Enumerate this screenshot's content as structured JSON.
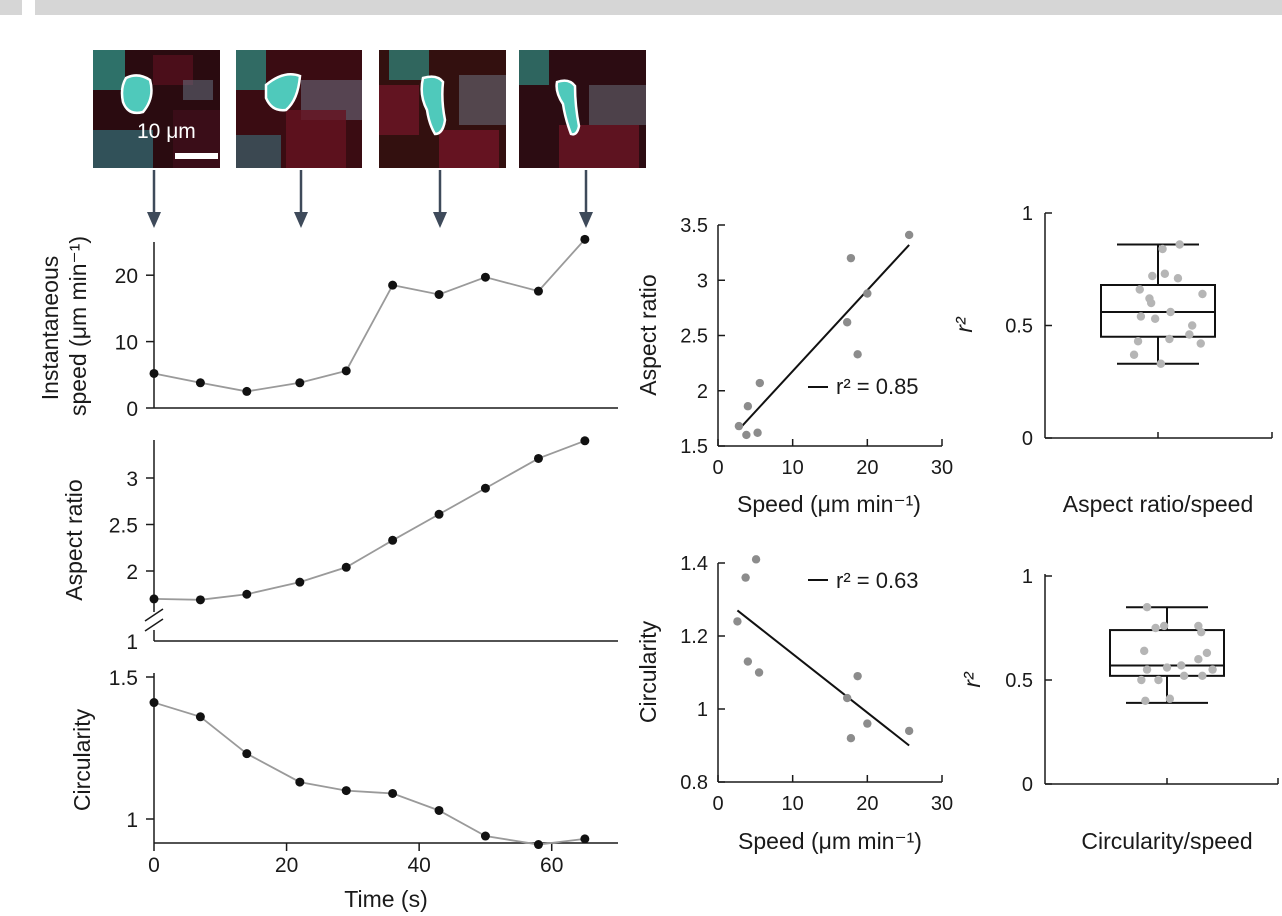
{
  "header_text": "",
  "scale_bar_label": "10 μm",
  "colors": {
    "background": "#ffffff",
    "header_band": "#d6d6d6",
    "line": "#9a9a9a",
    "marker": "#111111",
    "scatter_point": "#8c8c8c",
    "fit_line": "#111111",
    "box_point": "#b5b5b5",
    "arrow": "#3e4a5a",
    "cell_outline": "#ffffff",
    "cell_fill": "#4fc9bb",
    "thumb_background": "#2a0b10"
  },
  "chart_data": [
    {
      "id": "speed_time",
      "type": "line",
      "x": [
        0,
        7,
        14,
        22,
        29,
        36,
        43,
        50,
        58,
        65
      ],
      "y": [
        5.2,
        3.8,
        2.5,
        3.8,
        5.6,
        18.5,
        17.1,
        19.7,
        17.6,
        25.4
      ],
      "ylabel": "Instantaneous speed (μm min⁻¹)",
      "ylabel_lines": [
        "Instantaneous",
        "speed (μm min⁻¹)"
      ],
      "yticks": [
        0,
        10,
        20
      ],
      "ylim": [
        0,
        25
      ]
    },
    {
      "id": "aspect_time",
      "type": "line",
      "x": [
        0,
        7,
        14,
        22,
        29,
        36,
        43,
        50,
        58,
        65
      ],
      "y": [
        1.7,
        1.69,
        1.75,
        1.88,
        2.04,
        2.33,
        2.61,
        2.89,
        3.21,
        3.4
      ],
      "ylabel": "Aspect ratio",
      "yticks": [
        1,
        2,
        2.5,
        3
      ],
      "ytick_labels": [
        "1",
        "2",
        "2.5",
        "3"
      ],
      "axis_break": true,
      "ylim": [
        1.5,
        3.4
      ]
    },
    {
      "id": "circ_time",
      "type": "line",
      "x": [
        0,
        7,
        14,
        22,
        29,
        36,
        43,
        50,
        58,
        65
      ],
      "y": [
        1.41,
        1.36,
        1.23,
        1.13,
        1.1,
        1.09,
        1.03,
        0.94,
        0.91,
        0.93
      ],
      "ylabel": "Circularity",
      "xlabel": "Time (s)",
      "xticks": [
        0,
        20,
        40,
        60
      ],
      "yticks": [
        1,
        1.5
      ],
      "xlim": [
        0,
        70
      ],
      "ylim": [
        0.93,
        1.5
      ]
    },
    {
      "id": "aspect_speed",
      "type": "scatter",
      "x": [
        2.8,
        3.8,
        4.0,
        5.3,
        5.6,
        17.3,
        17.8,
        18.7,
        20.0,
        25.6
      ],
      "y": [
        1.68,
        1.6,
        1.86,
        1.62,
        2.07,
        2.62,
        3.2,
        2.33,
        2.88,
        3.41
      ],
      "fit": {
        "x": [
          2.8,
          25.6
        ],
        "y": [
          1.65,
          3.32
        ]
      },
      "annotation": "r² = 0.85",
      "xlabel": "Speed (μm min⁻¹)",
      "ylabel": "Aspect ratio",
      "xticks": [
        0,
        10,
        20,
        30
      ],
      "yticks": [
        1.5,
        2,
        2.5,
        3,
        3.5
      ],
      "xlim": [
        0,
        30
      ],
      "ylim": [
        1.5,
        3.5
      ]
    },
    {
      "id": "circ_speed",
      "type": "scatter",
      "x": [
        2.6,
        3.7,
        4.0,
        5.1,
        5.5,
        17.3,
        17.8,
        18.7,
        20.0,
        25.6
      ],
      "y": [
        1.24,
        1.36,
        1.13,
        1.41,
        1.1,
        1.03,
        0.92,
        1.09,
        0.96,
        0.94
      ],
      "fit": {
        "x": [
          2.6,
          25.6
        ],
        "y": [
          1.27,
          0.9
        ]
      },
      "annotation": "r² = 0.63",
      "xlabel": "Speed (μm min⁻¹)",
      "ylabel": "Circularity",
      "xticks": [
        0,
        10,
        20,
        30
      ],
      "yticks": [
        0.8,
        1,
        1.2,
        1.4
      ],
      "xlim": [
        0,
        30
      ],
      "ylim": [
        0.8,
        1.4
      ]
    },
    {
      "id": "box_aspect",
      "type": "box",
      "label": "Aspect ratio/speed",
      "ylabel": "r²",
      "yticks": [
        0,
        0.5,
        1
      ],
      "ylim": [
        0,
        1
      ],
      "stats": {
        "min": 0.33,
        "q1": 0.45,
        "median": 0.56,
        "q3": 0.68,
        "max": 0.86
      },
      "points": [
        {
          "x": 0.08,
          "y": 0.84
        },
        {
          "x": 0.38,
          "y": 0.86
        },
        {
          "x": -0.1,
          "y": 0.72
        },
        {
          "x": 0.12,
          "y": 0.73
        },
        {
          "x": 0.35,
          "y": 0.71
        },
        {
          "x": -0.15,
          "y": 0.62
        },
        {
          "x": -0.32,
          "y": 0.66
        },
        {
          "x": 0.78,
          "y": 0.64
        },
        {
          "x": -0.12,
          "y": 0.6
        },
        {
          "x": 0.22,
          "y": 0.56
        },
        {
          "x": -0.05,
          "y": 0.53
        },
        {
          "x": -0.3,
          "y": 0.54
        },
        {
          "x": 0.6,
          "y": 0.5
        },
        {
          "x": -0.35,
          "y": 0.43
        },
        {
          "x": 0.2,
          "y": 0.44
        },
        {
          "x": 0.55,
          "y": 0.46
        },
        {
          "x": -0.42,
          "y": 0.37
        },
        {
          "x": 0.75,
          "y": 0.42
        },
        {
          "x": 0.05,
          "y": 0.33
        }
      ]
    },
    {
      "id": "box_circ",
      "type": "box",
      "label": "Circularity/speed",
      "ylabel": "r²",
      "yticks": [
        0,
        0.5,
        1
      ],
      "ylim": [
        0,
        1
      ],
      "stats": {
        "min": 0.39,
        "q1": 0.52,
        "median": 0.57,
        "q3": 0.74,
        "max": 0.85
      },
      "points": [
        {
          "x": -0.35,
          "y": 0.85
        },
        {
          "x": -0.2,
          "y": 0.75
        },
        {
          "x": -0.05,
          "y": 0.76
        },
        {
          "x": 0.55,
          "y": 0.76
        },
        {
          "x": 0.6,
          "y": 0.73
        },
        {
          "x": -0.4,
          "y": 0.64
        },
        {
          "x": 0.7,
          "y": 0.63
        },
        {
          "x": 0.55,
          "y": 0.6
        },
        {
          "x": -0.35,
          "y": 0.55
        },
        {
          "x": 0.25,
          "y": 0.57
        },
        {
          "x": 0.0,
          "y": 0.56
        },
        {
          "x": 0.8,
          "y": 0.55
        },
        {
          "x": -0.15,
          "y": 0.5
        },
        {
          "x": -0.45,
          "y": 0.5
        },
        {
          "x": 0.3,
          "y": 0.52
        },
        {
          "x": 0.62,
          "y": 0.52
        },
        {
          "x": -0.38,
          "y": 0.4
        },
        {
          "x": 0.05,
          "y": 0.41
        }
      ]
    }
  ]
}
